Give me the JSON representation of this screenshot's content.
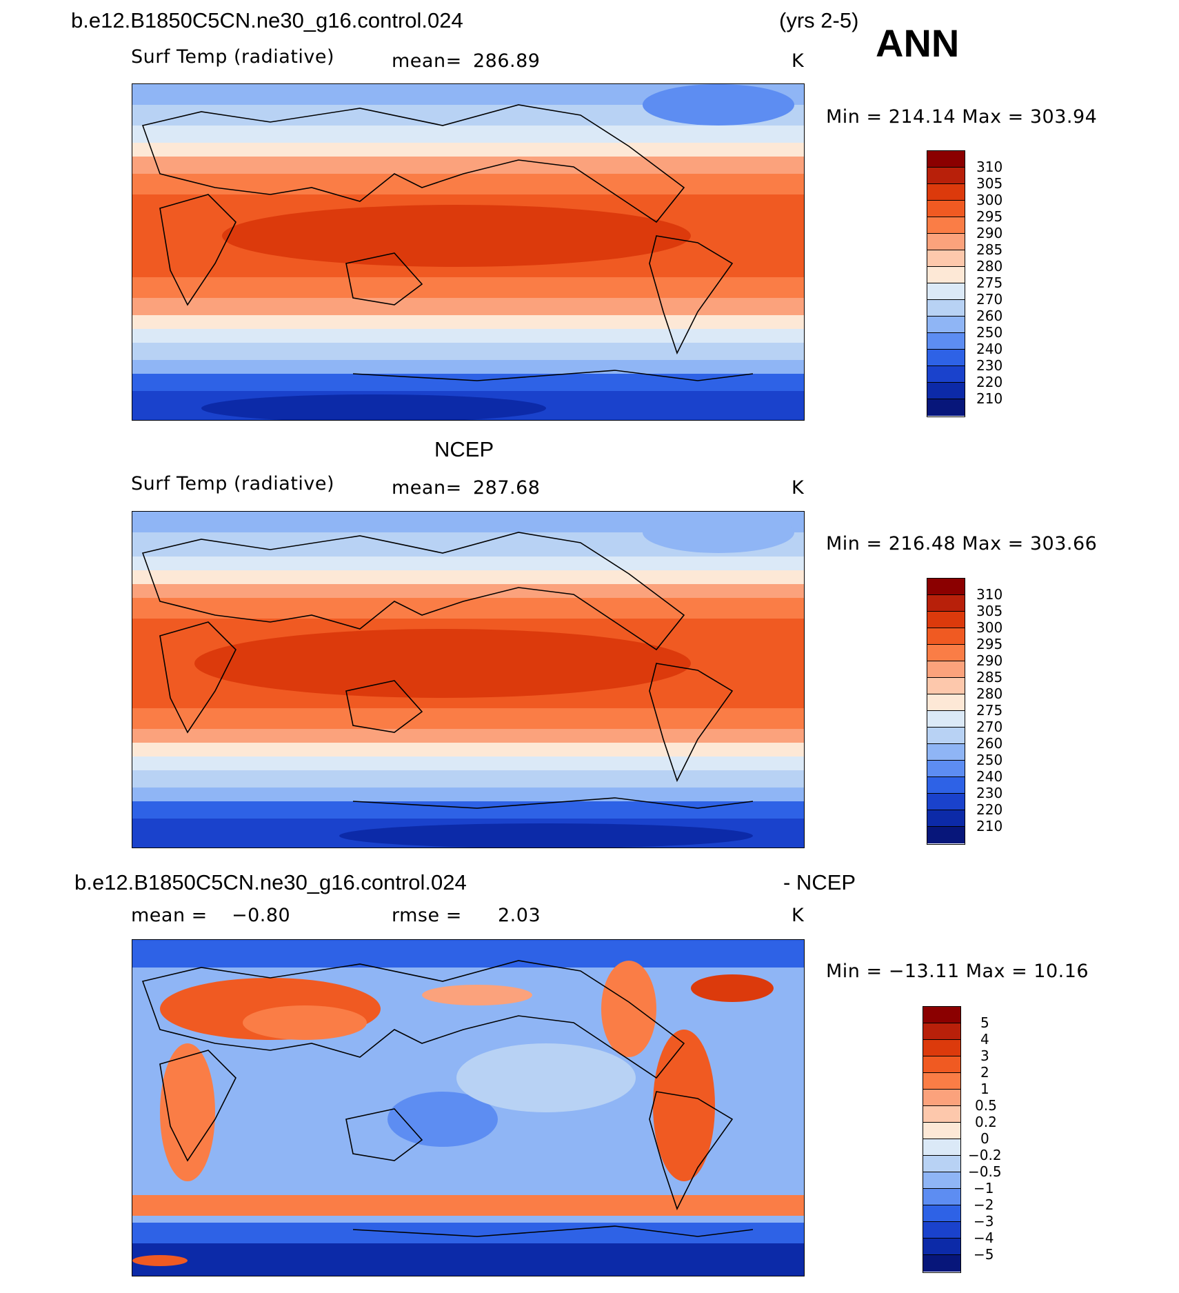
{
  "season": "ANN",
  "panels": [
    {
      "header_left": "b.e12.B1850C5CN.ne30_g16.control.024",
      "header_right": "(yrs 2-5)",
      "variable": "Surf Temp (radiative)",
      "stat_label": "mean=",
      "stat_value": "286.89",
      "units": "K",
      "minmax": "Min  =  214.14  Max  =  303.94",
      "colorbar_labels": [
        "310",
        "305",
        "300",
        "295",
        "290",
        "285",
        "280",
        "275",
        "270",
        "260",
        "250",
        "240",
        "230",
        "220",
        "210"
      ]
    },
    {
      "header_left": "NCEP",
      "variable": "Surf Temp (radiative)",
      "stat_label": "mean=",
      "stat_value": "287.68",
      "units": "K",
      "minmax": "Min  =  216.48  Max  =  303.66",
      "colorbar_labels": [
        "310",
        "305",
        "300",
        "295",
        "290",
        "285",
        "280",
        "275",
        "270",
        "260",
        "250",
        "240",
        "230",
        "220",
        "210"
      ]
    },
    {
      "header_left": "b.e12.B1850C5CN.ne30_g16.control.024",
      "header_right": "- NCEP",
      "stat1_label": "mean  =",
      "stat1_value": "−0.80",
      "stat2_label": "rmse  =",
      "stat2_value": "2.03",
      "units": "K",
      "minmax": "Min  =  −13.11  Max  =    10.16",
      "colorbar_labels": [
        "5",
        "4",
        "3",
        "2",
        "1",
        "0.5",
        "0.2",
        "0",
        "−0.2",
        "−0.5",
        "−1",
        "−2",
        "−3",
        "−4",
        "−5"
      ]
    }
  ],
  "colors": {
    "temperature_scale": [
      "#8b0000",
      "#b8200a",
      "#dc3a0c",
      "#f05a22",
      "#fa7d46",
      "#fba27c",
      "#fdc8ac",
      "#fde8d6",
      "#dbe9f7",
      "#b8d2f4",
      "#8fb5f5",
      "#5d8df2",
      "#2e62e6",
      "#1a42cc",
      "#0c2aa8",
      "#07167a"
    ],
    "difference_scale": [
      "#8b0000",
      "#b8200a",
      "#dc3a0c",
      "#f05a22",
      "#fa7d46",
      "#fba27c",
      "#fdc8ac",
      "#fde8d6",
      "#dbe9f7",
      "#b8d2f4",
      "#8fb5f5",
      "#5d8df2",
      "#2e62e6",
      "#1a42cc",
      "#0c2aa8",
      "#07167a"
    ]
  }
}
